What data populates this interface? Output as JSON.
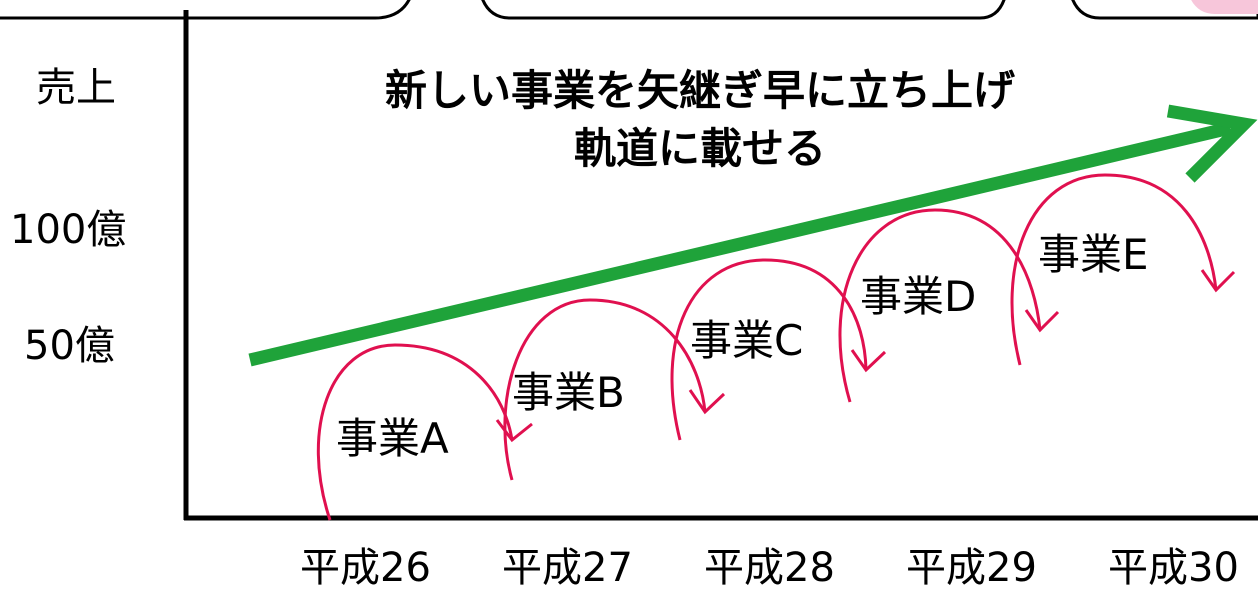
{
  "y_axis": {
    "title": "売上",
    "ticks": [
      "100億",
      "50億"
    ]
  },
  "headline": {
    "line1": "新しい事業を矢継ぎ早に立ち上げ",
    "line2": "軌道に載せる"
  },
  "businesses": [
    "事業A",
    "事業B",
    "事業C",
    "事業D",
    "事業E"
  ],
  "x_axis": {
    "ticks": [
      "平成26",
      "平成27",
      "平成28",
      "平成29",
      "平成30"
    ]
  },
  "colors": {
    "growth_arrow": "#1fa33a",
    "business_arcs": "#e0104f",
    "axes": "#000000",
    "top_boxes_border": "#000000",
    "top_right_box_fill": "#f7c6da"
  }
}
